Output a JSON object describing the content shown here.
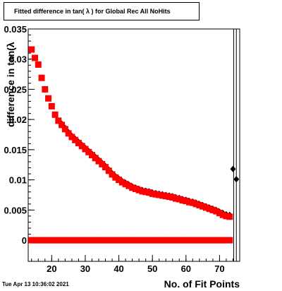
{
  "title": "Fitted difference in tan( λ ) for Global Rec All NoHits",
  "footer": {
    "timestamp": "Tue Apr 13 10:36:02 2021"
  },
  "chart_data": {
    "type": "scatter",
    "title": "Fitted difference in tan( λ ) for Global Rec All NoHits",
    "xlabel": "No. of Fit Points",
    "ylabel": "difference in tan(λ",
    "xlim": [
      13,
      76
    ],
    "ylim": [
      -0.0035,
      0.035
    ],
    "x_ticks": [
      20,
      30,
      40,
      50,
      60,
      70
    ],
    "y_ticks": [
      0,
      0.005,
      0.01,
      0.015,
      0.02,
      0.025,
      0.03,
      0.035
    ],
    "y_tick_labels": [
      "0",
      "0.005",
      "0.01",
      "0.015",
      "0.02",
      "0.025",
      "0.03",
      "0.035"
    ],
    "x_tick_labels": [
      "20",
      "30",
      "40",
      "50",
      "60",
      "70"
    ],
    "grid": false,
    "series": [
      {
        "marker": "square",
        "color": "#ff0000",
        "x": [
          14,
          15,
          16,
          17,
          18,
          19,
          20,
          21,
          22,
          23,
          24,
          25,
          26,
          27,
          28,
          29,
          30,
          31,
          32,
          33,
          34,
          35,
          36,
          37,
          38,
          39,
          40,
          41,
          42,
          43,
          44,
          45,
          46,
          47,
          48,
          49,
          50,
          51,
          52,
          53,
          54,
          55,
          56,
          57,
          58,
          59,
          60,
          61,
          62,
          63,
          64,
          65,
          66,
          67,
          68,
          69,
          70,
          71,
          72,
          73
        ],
        "y": [
          0.0316,
          0.0302,
          0.0291,
          0.0269,
          0.025,
          0.0235,
          0.0222,
          0.0208,
          0.0198,
          0.0191,
          0.0184,
          0.0177,
          0.0171,
          0.0166,
          0.0161,
          0.0156,
          0.0151,
          0.0146,
          0.0141,
          0.0136,
          0.0131,
          0.0126,
          0.0121,
          0.0115,
          0.0109,
          0.0104,
          0.01,
          0.0096,
          0.0093,
          0.009,
          0.0087,
          0.0085,
          0.0083,
          0.0081,
          0.008,
          0.0079,
          0.0077,
          0.0076,
          0.0075,
          0.0074,
          0.0073,
          0.0072,
          0.0071,
          0.0069,
          0.0068,
          0.0066,
          0.0065,
          0.0063,
          0.0062,
          0.006,
          0.0058,
          0.0056,
          0.0054,
          0.0052,
          0.005,
          0.0048,
          0.0045,
          0.0042,
          0.004,
          0.0039
        ]
      },
      {
        "marker": "square",
        "color": "#ff0000",
        "x": [
          14,
          15,
          16,
          17,
          18,
          19,
          20,
          21,
          22,
          23,
          24,
          25,
          26,
          27,
          28,
          29,
          30,
          31,
          32,
          33,
          34,
          35,
          36,
          37,
          38,
          39,
          40,
          41,
          42,
          43,
          44,
          45,
          46,
          47,
          48,
          49,
          50,
          51,
          52,
          53,
          54,
          55,
          56,
          57,
          58,
          59,
          60,
          61,
          62,
          63,
          64,
          65,
          66,
          67,
          68,
          69,
          70,
          71,
          72,
          73
        ],
        "y": [
          0,
          0,
          0,
          0,
          0,
          0,
          0,
          0,
          0,
          0,
          0,
          0,
          0,
          0,
          0,
          0,
          0,
          0,
          0,
          0,
          0,
          0,
          0,
          0,
          0,
          0,
          0,
          0,
          0,
          0,
          0,
          0,
          0,
          0,
          0,
          0,
          0,
          0,
          0,
          0,
          0,
          0,
          0,
          0,
          0,
          0,
          0,
          0,
          0,
          0,
          0,
          0,
          0,
          0,
          0,
          0,
          0,
          0,
          0,
          0
        ]
      },
      {
        "marker": "diamond",
        "color": "#000000",
        "x": [
          23,
          24,
          25,
          26,
          27,
          28,
          29,
          30,
          31,
          32,
          33,
          34,
          35,
          36,
          37,
          38,
          39,
          40,
          41,
          42,
          43,
          44,
          45,
          46,
          47,
          48,
          49,
          50,
          51,
          52,
          53,
          54,
          55,
          56,
          57,
          58,
          59,
          60,
          61,
          62,
          63,
          64,
          65,
          66,
          67,
          68,
          69,
          70,
          71,
          72,
          73,
          74,
          75
        ],
        "y": [
          0.0193,
          0.0186,
          0.0179,
          0.0173,
          0.0168,
          0.0163,
          0.0158,
          0.0153,
          0.0148,
          0.0143,
          0.0138,
          0.0133,
          0.0128,
          0.0123,
          0.0117,
          0.0111,
          0.0106,
          0.0102,
          0.0098,
          0.0095,
          0.0092,
          0.0089,
          0.0087,
          0.0085,
          0.0083,
          0.0082,
          0.0081,
          0.0079,
          0.0078,
          0.0077,
          0.0076,
          0.0075,
          0.0074,
          0.0073,
          0.0071,
          0.007,
          0.0068,
          0.0067,
          0.0065,
          0.0064,
          0.0062,
          0.006,
          0.0058,
          0.0056,
          0.0054,
          0.0052,
          0.005,
          0.0047,
          0.0045,
          0.0043,
          0.0042,
          0.0118,
          0.0101
        ]
      },
      {
        "marker": "diamond",
        "color": "#000000",
        "x": [
          14,
          15,
          16,
          17,
          18,
          19,
          20,
          21,
          22,
          23,
          24,
          25,
          26,
          27,
          28,
          29,
          30,
          31,
          32,
          33,
          34,
          35,
          36,
          37,
          38,
          39,
          40,
          41,
          42,
          43,
          44,
          45,
          46,
          47,
          48,
          49,
          50,
          51,
          52,
          53,
          54,
          55,
          56,
          57,
          58,
          59,
          60,
          61,
          62,
          63,
          64,
          65,
          66,
          67,
          68,
          69,
          70,
          71,
          72,
          73
        ],
        "y": [
          0,
          0,
          0,
          0,
          0,
          0,
          0,
          0,
          0,
          0,
          0,
          0,
          0,
          0,
          0,
          0,
          0,
          0,
          0,
          0,
          0,
          0,
          0,
          0,
          0,
          0,
          0,
          0,
          0,
          0,
          0,
          0,
          0,
          0,
          0,
          0,
          0,
          0,
          0,
          0,
          0,
          0,
          0,
          0,
          0,
          0,
          0,
          0,
          0,
          0,
          0,
          0,
          0,
          0,
          0,
          0,
          0,
          0,
          0,
          0
        ]
      }
    ]
  }
}
